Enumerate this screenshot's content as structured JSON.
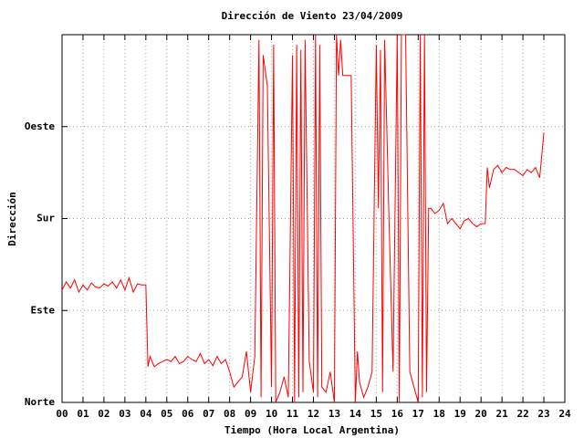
{
  "chart_data": {
    "type": "line",
    "title": "Dirección de Viento 23/04/2009",
    "x_label": "Tiempo (Hora Local Argentina)",
    "y_label": "Dirección",
    "xlim": [
      0,
      24
    ],
    "ylim": [
      0,
      360
    ],
    "xticks": [
      {
        "value": 0,
        "label": "00"
      },
      {
        "value": 1,
        "label": "01"
      },
      {
        "value": 2,
        "label": "02"
      },
      {
        "value": 3,
        "label": "03"
      },
      {
        "value": 4,
        "label": "04"
      },
      {
        "value": 5,
        "label": "05"
      },
      {
        "value": 6,
        "label": "06"
      },
      {
        "value": 7,
        "label": "07"
      },
      {
        "value": 8,
        "label": "08"
      },
      {
        "value": 9,
        "label": "09"
      },
      {
        "value": 10,
        "label": "10"
      },
      {
        "value": 11,
        "label": "11"
      },
      {
        "value": 12,
        "label": "12"
      },
      {
        "value": 13,
        "label": "13"
      },
      {
        "value": 14,
        "label": "14"
      },
      {
        "value": 15,
        "label": "15"
      },
      {
        "value": 16,
        "label": "16"
      },
      {
        "value": 17,
        "label": "17"
      },
      {
        "value": 18,
        "label": "18"
      },
      {
        "value": 19,
        "label": "19"
      },
      {
        "value": 20,
        "label": "20"
      },
      {
        "value": 21,
        "label": "21"
      },
      {
        "value": 22,
        "label": "22"
      },
      {
        "value": 23,
        "label": "23"
      },
      {
        "value": 24,
        "label": "24"
      }
    ],
    "yticks": [
      {
        "value": 0,
        "label": "Norte"
      },
      {
        "value": 90,
        "label": "Este"
      },
      {
        "value": 180,
        "label": "Sur"
      },
      {
        "value": 270,
        "label": "Oeste"
      }
    ],
    "grid": true,
    "x": [
      0,
      0.2,
      0.4,
      0.6,
      0.8,
      1,
      1.2,
      1.4,
      1.6,
      1.8,
      2,
      2.2,
      2.4,
      2.6,
      2.8,
      3,
      3.2,
      3.4,
      3.6,
      3.8,
      4,
      4.1,
      4.2,
      4.4,
      4.6,
      4.8,
      5,
      5.2,
      5.4,
      5.6,
      5.8,
      6,
      6.2,
      6.4,
      6.6,
      6.8,
      7,
      7.2,
      7.4,
      7.6,
      7.8,
      8,
      8.2,
      8.4,
      8.6,
      8.8,
      9,
      9.2,
      9.4,
      9.5,
      9.6,
      9.8,
      10,
      10.1,
      10.2,
      10.4,
      10.6,
      10.8,
      11,
      11.1,
      11.2,
      11.3,
      11.4,
      11.5,
      11.6,
      11.8,
      12,
      12.1,
      12.2,
      12.3,
      12.4,
      12.6,
      12.8,
      13,
      13.1,
      13.2,
      13.3,
      13.4,
      13.6,
      13.8,
      14,
      14.1,
      14.2,
      14.4,
      14.6,
      14.8,
      15,
      15.1,
      15.2,
      15.3,
      15.4,
      15.6,
      15.8,
      16,
      16.1,
      16.2,
      16.4,
      16.6,
      16.8,
      17,
      17.1,
      17.2,
      17.3,
      17.4,
      17.5,
      17.6,
      17.8,
      18,
      18.2,
      18.4,
      18.6,
      18.8,
      19,
      19.2,
      19.4,
      19.6,
      19.8,
      20,
      20.2,
      20.3,
      20.4,
      20.6,
      20.8,
      21,
      21.2,
      21.4,
      21.6,
      21.8,
      22,
      22.2,
      22.4,
      22.6,
      22.8,
      23
    ],
    "series": [
      {
        "color": "#ff0000",
        "values": [
          110,
          118,
          112,
          120,
          108,
          115,
          110,
          117,
          113,
          112,
          116,
          114,
          118,
          112,
          120,
          110,
          122,
          108,
          116,
          115,
          115,
          35,
          45,
          35,
          38,
          40,
          42,
          40,
          45,
          38,
          40,
          45,
          42,
          40,
          48,
          38,
          42,
          36,
          45,
          38,
          42,
          30,
          15,
          20,
          25,
          50,
          10,
          45,
          355,
          5,
          340,
          310,
          15,
          350,
          0,
          10,
          25,
          5,
          340,
          0,
          350,
          5,
          345,
          10,
          355,
          40,
          10,
          360,
          5,
          350,
          15,
          10,
          30,
          0,
          360,
          320,
          355,
          320,
          320,
          320,
          0,
          50,
          20,
          5,
          15,
          30,
          350,
          190,
          345,
          10,
          355,
          185,
          30,
          360,
          0,
          360,
          360,
          30,
          15,
          0,
          360,
          5,
          360,
          10,
          190,
          190,
          185,
          188,
          195,
          175,
          180,
          175,
          170,
          178,
          180,
          175,
          172,
          175,
          175,
          230,
          210,
          228,
          232,
          225,
          230,
          228,
          228,
          225,
          222,
          228,
          225,
          230,
          220,
          264
        ]
      }
    ]
  }
}
